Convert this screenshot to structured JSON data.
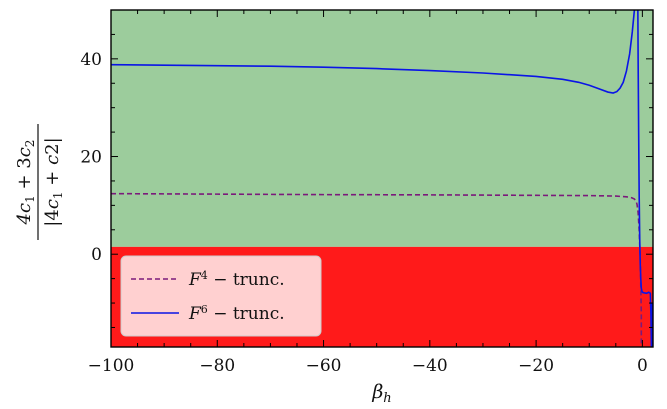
{
  "chart_data": {
    "type": "line",
    "xlabel": "βh",
    "ylabel": "(4c1 + 3c2) / |4c1 + c2|",
    "xlim": [
      -100,
      2
    ],
    "ylim": [
      -19,
      50
    ],
    "grid": false,
    "legend_position": "bottom-left",
    "x_ticks": [
      {
        "value": -100,
        "label": "−100"
      },
      {
        "value": -80,
        "label": "−80"
      },
      {
        "value": -60,
        "label": "−60"
      },
      {
        "value": -40,
        "label": "−40"
      },
      {
        "value": -20,
        "label": "−20"
      },
      {
        "value": 0,
        "label": "0"
      }
    ],
    "y_ticks": [
      {
        "value": 0,
        "label": "0"
      },
      {
        "value": 20,
        "label": "20"
      },
      {
        "value": 40,
        "label": "40"
      }
    ],
    "regions": [
      {
        "name": "green",
        "y_from": 1.5,
        "y_to": 50,
        "color": "#9ccc9c"
      },
      {
        "name": "red",
        "y_from": -19,
        "y_to": 1.5,
        "color": "#ff1a1a"
      }
    ],
    "series": [
      {
        "name": "F4 − trunc.",
        "label_main": "F",
        "label_sup": "4",
        "label_rest": " − trunc.",
        "color": "#7b1a7b",
        "style": "dashed",
        "x": [
          -100,
          -80,
          -60,
          -40,
          -20,
          -10,
          -5,
          -3,
          -2,
          -1.5,
          -1.2,
          -1.0,
          -0.8,
          -0.6,
          -0.4,
          -0.3,
          -0.2,
          -0.2
        ],
        "y": [
          12.4,
          12.3,
          12.2,
          12.15,
          12.05,
          12.0,
          11.9,
          11.75,
          11.55,
          11.3,
          10.9,
          10.2,
          8.5,
          5.0,
          -1.0,
          -6.5,
          -12.0,
          -19.0
        ]
      },
      {
        "name": "F6 − trunc.",
        "label_main": "F",
        "label_sup": "6",
        "label_rest": " − trunc.",
        "color": "#0a14e6",
        "style": "solid",
        "x": [
          -100,
          -90,
          -80,
          -70,
          -60,
          -50,
          -40,
          -30,
          -20,
          -15,
          -12,
          -10,
          -8,
          -6.5,
          -5.5,
          -4.8,
          -4.2,
          -3.6,
          -3.0,
          -2.4,
          -1.9,
          -1.5,
          -1.2,
          -1.0,
          -0.9,
          -0.85,
          -0.8,
          -0.7,
          -0.6,
          -0.5,
          -0.4,
          -0.3,
          -0.2,
          -0.1,
          0.0,
          0.3,
          0.8,
          1.2,
          1.5,
          1.6,
          1.7,
          1.8,
          1.9,
          2.0
        ],
        "y": [
          38.8,
          38.7,
          38.6,
          38.5,
          38.3,
          38.0,
          37.6,
          37.1,
          36.4,
          35.8,
          35.2,
          34.6,
          33.8,
          33.2,
          33.0,
          33.3,
          34.0,
          35.2,
          37.5,
          41.0,
          45.5,
          50.0,
          60.0,
          70.0,
          60.0,
          50.0,
          40.0,
          25.0,
          12.0,
          3.0,
          -2.0,
          -5.0,
          -7.0,
          -7.5,
          -7.8,
          -7.9,
          -8.0,
          -7.8,
          -8.0,
          -12.0,
          -19.0,
          -10.0,
          -15.0,
          -19.0
        ]
      }
    ]
  }
}
